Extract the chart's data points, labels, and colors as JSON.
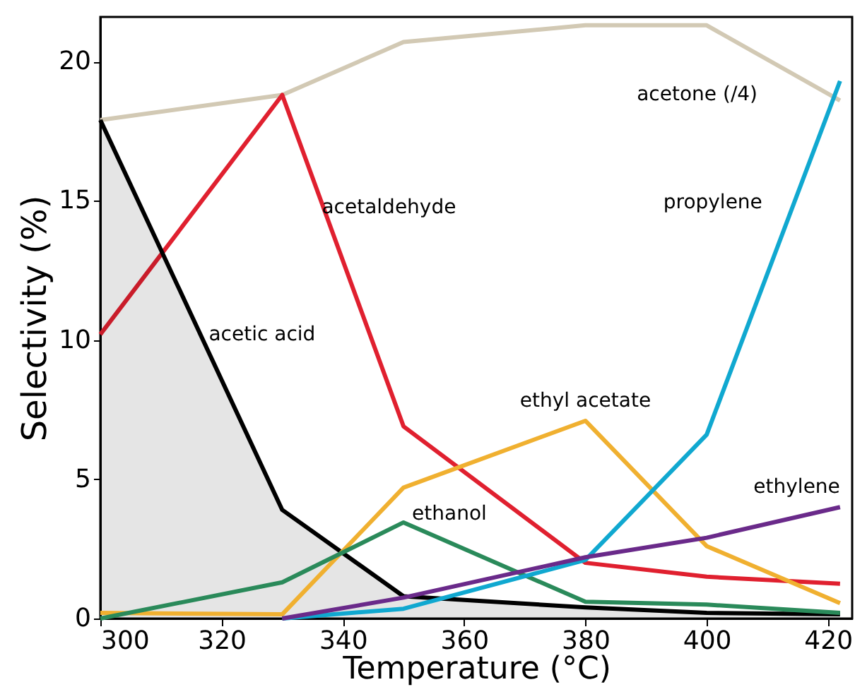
{
  "chart_data": {
    "type": "line",
    "xlabel": "Temperature (°C)",
    "ylabel": "Selectivity (%)",
    "x": [
      300,
      330,
      350,
      380,
      400,
      422
    ],
    "xlim": [
      300,
      424
    ],
    "xticks": [
      300,
      320,
      340,
      360,
      380,
      400,
      420
    ],
    "ylim": [
      0,
      21.6
    ],
    "yticks": [
      0,
      5,
      10,
      15,
      20
    ],
    "grid": false,
    "marker": "none",
    "line_style": "solid",
    "series": [
      {
        "name": "acetone (/4)",
        "color": "#d2c9b4",
        "values": [
          17.9,
          18.8,
          20.7,
          21.3,
          21.3,
          18.6
        ]
      },
      {
        "name": "acetaldehyde",
        "color": "#e0202f",
        "values": [
          10.2,
          18.8,
          6.9,
          2.0,
          1.5,
          1.25
        ]
      },
      {
        "name": "acetic acid",
        "type": "area",
        "color": "#000000",
        "values": [
          17.9,
          3.9,
          0.8,
          0.4,
          0.2,
          0.15
        ]
      },
      {
        "name": "ethyl acetate",
        "color": "#f0b030",
        "values": [
          0.2,
          0.15,
          4.7,
          7.1,
          2.6,
          0.55
        ]
      },
      {
        "name": "ethanol",
        "color": "#2a8a5a",
        "values": [
          0,
          1.3,
          3.45,
          0.6,
          0.5,
          0.2
        ]
      },
      {
        "name": "propylene",
        "color": "#10a8d0",
        "values": [
          null,
          0,
          0.35,
          2.1,
          6.6,
          19.3
        ]
      },
      {
        "name": "ethylene",
        "color": "#6a2a8a",
        "values": [
          null,
          0,
          0.75,
          2.2,
          2.9,
          4.0
        ]
      }
    ]
  }
}
